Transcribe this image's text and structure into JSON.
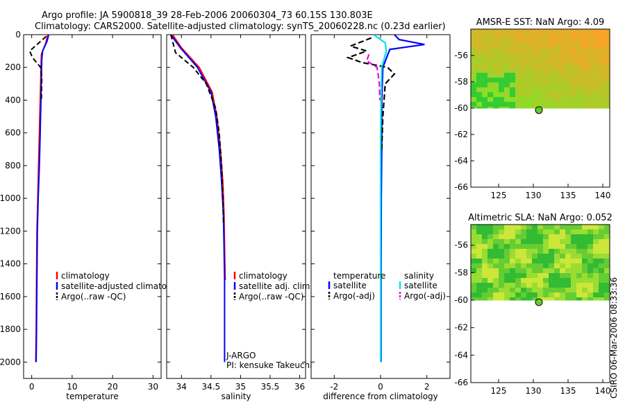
{
  "header": {
    "line1": "Argo profile: JA 5900818_39 28-Feb-2006 20060304_73 60.15S 130.803E",
    "line2": "Climatology: CARS2000. Satellite-adjusted climatology: synTS_20060228.nc (0.23d earlier)"
  },
  "footer_stamp": "CSIRO 06-Mar-2006 08:33:36",
  "colors": {
    "climatology": "#ff0000",
    "satellite": "#0000ff",
    "argo": "#000000",
    "sal_satellite": "#00e5e5",
    "sal_argo": "#e500e5"
  },
  "chart_data": [
    {
      "type": "line",
      "id": "temperature",
      "xlabel": "temperature",
      "xlim": [
        -2,
        32
      ],
      "ylim": [
        2100,
        0
      ],
      "xticks": [
        0,
        10,
        20,
        30
      ],
      "yticks": [
        0,
        200,
        400,
        600,
        800,
        1000,
        1200,
        1400,
        1600,
        1800,
        2000
      ],
      "legend": [
        "climatology",
        "satellite-adjusted climatology",
        "Argo(..raw -QC)"
      ],
      "series": [
        {
          "name": "climatology",
          "x": [
            4.0,
            3.5,
            2.4,
            2.3,
            2.2,
            2.1,
            1.9,
            1.7,
            1.5,
            1.3,
            1.2,
            1.1,
            1.0
          ],
          "y": [
            0,
            50,
            120,
            200,
            300,
            400,
            600,
            800,
            1000,
            1200,
            1500,
            1800,
            2000
          ]
        },
        {
          "name": "satellite-adjusted climatology",
          "x": [
            4.2,
            3.8,
            2.7,
            2.5,
            2.4,
            2.3,
            2.1,
            1.9,
            1.6,
            1.4,
            1.3,
            1.2,
            1.1
          ],
          "y": [
            0,
            40,
            100,
            150,
            250,
            400,
            600,
            800,
            1000,
            1200,
            1500,
            1800,
            2000
          ]
        },
        {
          "name": "Argo(..raw -QC)",
          "x": [
            3.6,
            1.8,
            -0.5,
            0.2,
            1.2,
            2.2,
            2.5,
            2.4
          ],
          "y": [
            10,
            50,
            100,
            140,
            170,
            200,
            260,
            400
          ]
        }
      ]
    },
    {
      "type": "line",
      "id": "salinity",
      "xlabel": "salinity",
      "xlim": [
        33.75,
        36.1
      ],
      "ylim": [
        2100,
        0
      ],
      "xticks": [
        34,
        34.5,
        35,
        35.5,
        36
      ],
      "xticklabels": [
        "34",
        "34.5",
        "35",
        "35.5",
        "36"
      ],
      "yticks": [
        0,
        200,
        400,
        600,
        800,
        1000,
        1200,
        1400,
        1600,
        1800,
        2000
      ],
      "legend": [
        "climatology",
        "satellite adj. clim.",
        "Argo(..raw -QC)"
      ],
      "annotation": [
        "J-ARGO",
        "PI: kensuke Takeuchi"
      ],
      "series": [
        {
          "name": "climatology",
          "x": [
            33.85,
            34.0,
            34.3,
            34.52,
            34.6,
            34.66,
            34.7,
            34.72,
            34.73,
            34.74
          ],
          "y": [
            0,
            80,
            200,
            350,
            500,
            700,
            900,
            1100,
            1300,
            1500
          ]
        },
        {
          "name": "satellite adj. clim.",
          "x": [
            33.82,
            33.98,
            34.27,
            34.5,
            34.58,
            34.64,
            34.68,
            34.71,
            34.72,
            34.73,
            34.73,
            34.73
          ],
          "y": [
            0,
            80,
            200,
            350,
            500,
            700,
            900,
            1100,
            1300,
            1500,
            1800,
            2000
          ]
        },
        {
          "name": "Argo(..raw -QC)",
          "x": [
            33.82,
            33.9,
            34.2,
            34.42,
            34.58,
            34.64,
            34.68,
            34.7,
            34.71
          ],
          "y": [
            0,
            110,
            200,
            300,
            450,
            600,
            800,
            1000,
            1150
          ]
        }
      ]
    },
    {
      "type": "line",
      "id": "difference",
      "xlabel": "difference from climatology",
      "xlim": [
        -3,
        3
      ],
      "ylim": [
        2100,
        0
      ],
      "xticks": [
        -2,
        0,
        2
      ],
      "yticks": [
        0,
        200,
        400,
        600,
        800,
        1000,
        1200,
        1400,
        1600,
        1800,
        2000
      ],
      "legend_headers": [
        "temperature",
        "salinity"
      ],
      "legend": [
        "satellite",
        "Argo(-adj)",
        "satellite",
        "Argo(-adj)"
      ],
      "series": [
        {
          "name": "satellite",
          "x": [
            0.6,
            0.8,
            1.9,
            0.4,
            0.1,
            0.05,
            0.05,
            0.03,
            0.02,
            0.02
          ],
          "y": [
            0,
            30,
            60,
            90,
            200,
            400,
            700,
            1000,
            1500,
            2000
          ]
        },
        {
          "name": "Argo(-adj)",
          "x": [
            -0.4,
            -1.3,
            -0.6,
            -1.4,
            -0.8,
            0.3,
            0.6,
            0.2,
            0.1,
            0.05
          ],
          "y": [
            20,
            70,
            100,
            140,
            170,
            200,
            240,
            300,
            500,
            700
          ]
        },
        {
          "name": "satellite",
          "x": [
            -0.3,
            0.2,
            0.25,
            0.15,
            0.05,
            0.02,
            0.0,
            0.0,
            0.0
          ],
          "y": [
            0,
            50,
            100,
            150,
            200,
            400,
            700,
            1000,
            2000
          ]
        },
        {
          "name": "Argo(-adj)",
          "x": [
            -0.5,
            -0.6,
            -0.15,
            -0.1,
            -0.05,
            -0.03
          ],
          "y": [
            120,
            160,
            200,
            250,
            300,
            400
          ]
        }
      ]
    },
    {
      "type": "heatmap",
      "id": "sst",
      "title": "AMSR-E SST: NaN Argo: 4.09",
      "xlim": [
        121,
        141
      ],
      "ylim": [
        -66,
        -54
      ],
      "xticks": [
        125,
        130,
        135,
        140
      ],
      "yticks": [
        -56,
        -58,
        -60,
        -62,
        -64,
        -66
      ],
      "argo_position": [
        130.8,
        -60.15
      ]
    },
    {
      "type": "heatmap",
      "id": "sla",
      "title": "Altimetric SLA: NaN Argo: 0.052",
      "xlim": [
        121,
        141
      ],
      "ylim": [
        -66,
        -54.5
      ],
      "xticks": [
        125,
        130,
        135,
        140
      ],
      "yticks": [
        -56,
        -58,
        -60,
        -62,
        -64,
        -66
      ],
      "argo_position": [
        130.8,
        -60.15
      ]
    }
  ]
}
